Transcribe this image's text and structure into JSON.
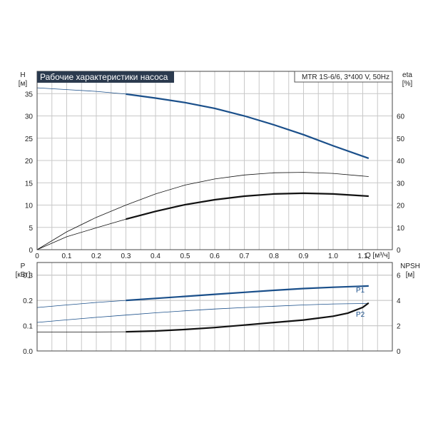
{
  "title": "Рабочие характеристики насоса",
  "model": "MTR 1S-6/6, 3*400 V, 50Hz",
  "colors": {
    "blue": "#1a4f8a",
    "black": "#111111",
    "grid": "#c8c8c8"
  },
  "chart_data": [
    {
      "type": "line",
      "name": "top-panel",
      "grid": true,
      "xlabel": "Q [м³/ч]",
      "xlim": [
        0,
        1.2
      ],
      "xticks": [
        "0",
        "0.1",
        "0.2",
        "0.3",
        "0.4",
        "0.5",
        "0.6",
        "0.7",
        "0.8",
        "0.9",
        "1.0",
        "1.1"
      ],
      "ylabel_left": [
        "H",
        "[м]"
      ],
      "ylim_left": [
        0,
        40
      ],
      "yticks_left": [
        "0",
        "5",
        "10",
        "15",
        "20",
        "25",
        "30",
        "35"
      ],
      "ylabel_right": [
        "eta",
        "[%]"
      ],
      "ylim_right": [
        0,
        80
      ],
      "yticks_right": [
        "0",
        "10",
        "20",
        "30",
        "40",
        "50",
        "60"
      ],
      "series": [
        {
          "axis": "left",
          "style": "blue-thin-then-thick",
          "x": [
            0,
            0.1,
            0.2,
            0.3,
            0.4,
            0.5,
            0.6,
            0.7,
            0.8,
            0.9,
            1.0,
            1.12
          ],
          "y": [
            36.3,
            35.9,
            35.5,
            34.9,
            34.0,
            33.0,
            31.7,
            30.0,
            28.0,
            25.8,
            23.3,
            20.5
          ]
        },
        {
          "axis": "right",
          "style": "black-thin",
          "x": [
            0,
            0.1,
            0.2,
            0.3,
            0.4,
            0.5,
            0.6,
            0.7,
            0.8,
            0.9,
            1.0,
            1.12
          ],
          "y": [
            0,
            8,
            14.5,
            20,
            25,
            29,
            31.7,
            33.5,
            34.5,
            34.7,
            34.2,
            32.8
          ]
        },
        {
          "axis": "right",
          "style": "black-thin-then-thick",
          "x": [
            0,
            0.1,
            0.2,
            0.3,
            0.4,
            0.5,
            0.6,
            0.7,
            0.8,
            0.9,
            1.0,
            1.12
          ],
          "y": [
            0,
            5.8,
            9.8,
            13.7,
            17.2,
            20.2,
            22.4,
            24.0,
            25.0,
            25.3,
            25.0,
            24.0
          ]
        }
      ]
    },
    {
      "type": "line",
      "name": "bottom-panel",
      "grid": true,
      "xlim": [
        0,
        1.2
      ],
      "ylabel_left": [
        "P",
        "[кВт]"
      ],
      "ylim_left": [
        0,
        0.35
      ],
      "yticks_left": [
        "0.0",
        "0.1",
        "0.2",
        "0.3"
      ],
      "ylabel_right": [
        "NPSH",
        "[м]"
      ],
      "ylim_right": [
        0,
        7
      ],
      "yticks_right": [
        "0",
        "2",
        "4",
        "6"
      ],
      "series": [
        {
          "name": "P1",
          "axis": "left",
          "style": "blue-thin-then-thick",
          "x": [
            0,
            0.1,
            0.2,
            0.3,
            0.4,
            0.5,
            0.6,
            0.7,
            0.8,
            0.9,
            1.0,
            1.12
          ],
          "y": [
            0.172,
            0.182,
            0.192,
            0.2,
            0.208,
            0.216,
            0.224,
            0.232,
            0.24,
            0.247,
            0.252,
            0.257
          ]
        },
        {
          "name": "P2",
          "axis": "left",
          "style": "blue-thin",
          "x": [
            0,
            0.1,
            0.2,
            0.3,
            0.4,
            0.5,
            0.6,
            0.7,
            0.8,
            0.9,
            1.0,
            1.12
          ],
          "y": [
            0.113,
            0.123,
            0.133,
            0.142,
            0.151,
            0.159,
            0.166,
            0.172,
            0.177,
            0.182,
            0.186,
            0.188
          ]
        },
        {
          "axis": "right",
          "style": "black-thin-then-thick",
          "x": [
            0,
            0.1,
            0.2,
            0.3,
            0.4,
            0.5,
            0.6,
            0.7,
            0.8,
            0.9,
            1.0,
            1.05,
            1.1,
            1.12
          ],
          "y": [
            1.5,
            1.5,
            1.5,
            1.52,
            1.58,
            1.7,
            1.85,
            2.05,
            2.25,
            2.45,
            2.75,
            3.0,
            3.45,
            3.8
          ]
        }
      ]
    }
  ]
}
